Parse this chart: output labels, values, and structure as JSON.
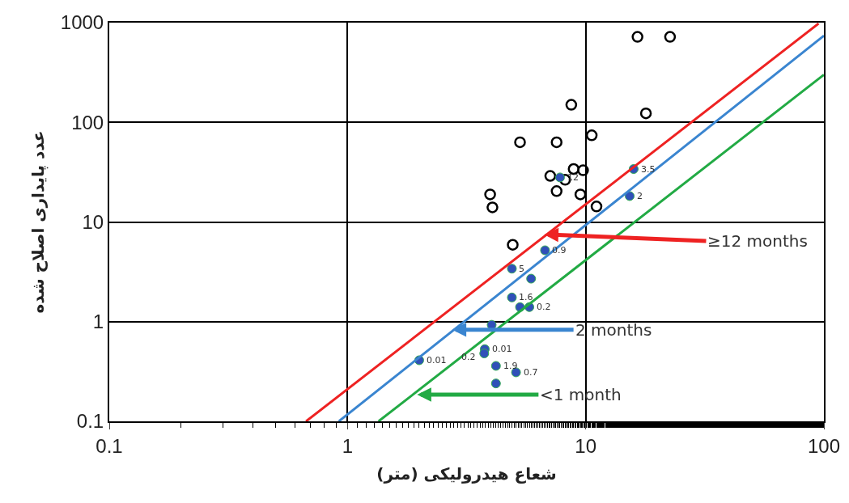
{
  "chart_data": {
    "type": "scatter",
    "xlabel": "شعاع هیدرولیکی (متر)",
    "ylabel": "عدد پایداری اصلاح شده",
    "log": "xy",
    "grid": true,
    "legend": false,
    "xlim": [
      0.1,
      100
    ],
    "xticks": [
      0.1,
      1,
      10,
      100
    ],
    "ylim": [
      0.1,
      1000
    ],
    "yticks": [
      0.1,
      1,
      10,
      100,
      1000
    ],
    "series": [
      {
        "marker": "circle-open",
        "color": "#000000",
        "x": [
          16.5,
          22.6,
          8.7,
          17.9,
          10.6,
          5.3,
          7.55,
          8.9,
          9.75,
          7.1,
          8.2,
          7.55,
          9.5,
          3.97,
          4.06,
          11.1,
          4.94
        ],
        "values": [
          720,
          720,
          150,
          123,
          74,
          63,
          63,
          34,
          33,
          29,
          26.5,
          20.4,
          18.9,
          18.9,
          14,
          14.3,
          5.9
        ]
      },
      {
        "marker": "circle",
        "color": "#3050b8",
        "x": [
          7.8,
          15.9,
          15.3,
          4.9,
          6.75,
          5.9,
          4.9,
          5.3,
          5.8,
          4.03,
          3.77,
          3.75,
          2.0,
          4.2,
          5.1,
          4.2
        ],
        "values": [
          28,
          34,
          18.2,
          3.4,
          5.2,
          2.7,
          1.75,
          1.4,
          1.4,
          0.93,
          0.53,
          0.48,
          0.41,
          0.36,
          0.31,
          0.24
        ]
      },
      {
        "type": "line",
        "color": "#ee2222",
        "x": [
          0.67,
          95
        ],
        "values": [
          0.1,
          980
        ]
      },
      {
        "type": "line",
        "color": "#3a85d0",
        "x": [
          0.92,
          100
        ],
        "values": [
          0.1,
          740
        ]
      },
      {
        "type": "line",
        "color": "#22aa44",
        "x": [
          1.35,
          100
        ],
        "values": [
          0.1,
          300
        ]
      }
    ],
    "annotations": [
      {
        "text": "≥12 months",
        "x": 6.7,
        "y": 7.5
      },
      {
        "text": "2 months",
        "x": 2.75,
        "y": 0.83
      },
      {
        "text": "<1 month",
        "x": 1.96,
        "y": 0.185
      },
      {
        "text": "3.5",
        "x": 15.9,
        "y": 34
      },
      {
        "text": "2",
        "x": 15.3,
        "y": 18.2
      },
      {
        "text": "12",
        "x": 7.8,
        "y": 28
      },
      {
        "text": "5",
        "x": 4.9,
        "y": 3.4
      },
      {
        "text": "0.9",
        "x": 6.75,
        "y": 5.2
      },
      {
        "text": "1.6",
        "x": 4.9,
        "y": 1.75
      },
      {
        "text": "0.2",
        "x": 5.8,
        "y": 1.4
      },
      {
        "text": "0.01",
        "x": 3.77,
        "y": 0.53
      },
      {
        "text": "0.2",
        "x": 3.75,
        "y": 0.48
      },
      {
        "text": "0.01",
        "x": 2.0,
        "y": 0.41
      },
      {
        "text": "1.9",
        "x": 4.2,
        "y": 0.36
      },
      {
        "text": "0.7",
        "x": 5.1,
        "y": 0.31
      }
    ]
  }
}
